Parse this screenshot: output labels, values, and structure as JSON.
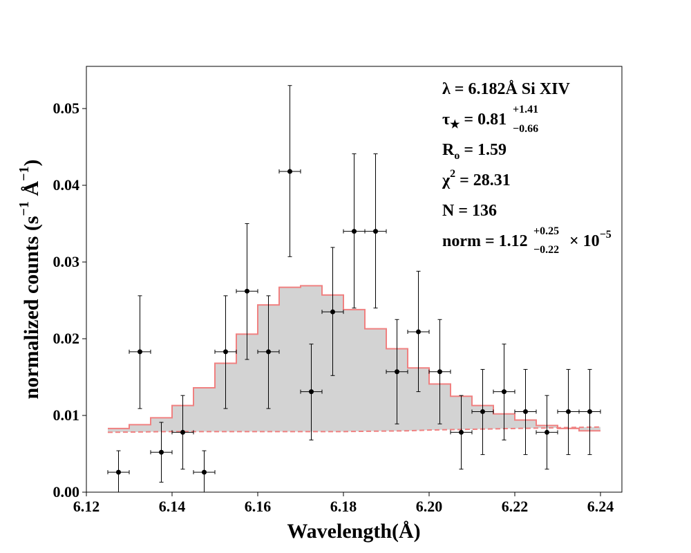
{
  "chart_data": {
    "type": "line",
    "xlabel_base": "Wavelength",
    "xlabel_unit": "(Å)",
    "ylabel_base": "normalized counts (s",
    "ylabel_sup1": "−1",
    "ylabel_mid": " Å",
    "ylabel_sup2": "−1",
    "ylabel_end": ")",
    "xlim": [
      6.12,
      6.245
    ],
    "ylim": [
      0.0,
      0.0555
    ],
    "xticks": [
      "6.12",
      "6.14",
      "6.16",
      "6.18",
      "6.20",
      "6.22",
      "6.24"
    ],
    "yticks": [
      "0.00",
      "0.01",
      "0.02",
      "0.03",
      "0.04",
      "0.05"
    ],
    "model_fill_color": "#d3d3d3",
    "model_line_color": "#f08080",
    "bin_edges": [
      6.125,
      6.13,
      6.135,
      6.14,
      6.145,
      6.15,
      6.155,
      6.16,
      6.165,
      6.17,
      6.175,
      6.18,
      6.185,
      6.19,
      6.195,
      6.2,
      6.205,
      6.21,
      6.215,
      6.22,
      6.225,
      6.23,
      6.235,
      6.24
    ],
    "model_values": [
      0.0083,
      0.0088,
      0.0097,
      0.0113,
      0.0136,
      0.0168,
      0.0206,
      0.0244,
      0.0267,
      0.0269,
      0.0257,
      0.0238,
      0.0213,
      0.0187,
      0.0162,
      0.0141,
      0.0125,
      0.0113,
      0.0102,
      0.0094,
      0.0087,
      0.0083,
      0.008
    ],
    "continuum_x": [
      6.125,
      6.14,
      6.16,
      6.18,
      6.195,
      6.2,
      6.21,
      6.22,
      6.23,
      6.24
    ],
    "continuum_y": [
      0.0078,
      0.0079,
      0.0079,
      0.0079,
      0.008,
      0.0081,
      0.0082,
      0.0083,
      0.0084,
      0.0085
    ],
    "points": [
      {
        "x": 6.1275,
        "y": 0.0026,
        "ylo": 0.0,
        "yhi": 0.0054
      },
      {
        "x": 6.1325,
        "y": 0.0183,
        "ylo": 0.0109,
        "yhi": 0.0256
      },
      {
        "x": 6.1375,
        "y": 0.0052,
        "ylo": 0.0013,
        "yhi": 0.0091
      },
      {
        "x": 6.1425,
        "y": 0.0078,
        "ylo": 0.003,
        "yhi": 0.0126
      },
      {
        "x": 6.1475,
        "y": 0.0026,
        "ylo": 0.0,
        "yhi": 0.0054
      },
      {
        "x": 6.1525,
        "y": 0.0183,
        "ylo": 0.0109,
        "yhi": 0.0256
      },
      {
        "x": 6.1575,
        "y": 0.0262,
        "ylo": 0.0173,
        "yhi": 0.035
      },
      {
        "x": 6.1625,
        "y": 0.0183,
        "ylo": 0.0109,
        "yhi": 0.0256
      },
      {
        "x": 6.1675,
        "y": 0.0418,
        "ylo": 0.0307,
        "yhi": 0.053
      },
      {
        "x": 6.1725,
        "y": 0.0131,
        "ylo": 0.0068,
        "yhi": 0.0193
      },
      {
        "x": 6.1775,
        "y": 0.0235,
        "ylo": 0.0152,
        "yhi": 0.0319
      },
      {
        "x": 6.1825,
        "y": 0.034,
        "ylo": 0.024,
        "yhi": 0.0441
      },
      {
        "x": 6.1875,
        "y": 0.034,
        "ylo": 0.024,
        "yhi": 0.0441
      },
      {
        "x": 6.1925,
        "y": 0.0157,
        "ylo": 0.0089,
        "yhi": 0.0225
      },
      {
        "x": 6.1975,
        "y": 0.0209,
        "ylo": 0.0131,
        "yhi": 0.0288
      },
      {
        "x": 6.2025,
        "y": 0.0157,
        "ylo": 0.0089,
        "yhi": 0.0225
      },
      {
        "x": 6.2075,
        "y": 0.0078,
        "ylo": 0.003,
        "yhi": 0.0126
      },
      {
        "x": 6.2125,
        "y": 0.0105,
        "ylo": 0.0049,
        "yhi": 0.016
      },
      {
        "x": 6.2175,
        "y": 0.0131,
        "ylo": 0.0068,
        "yhi": 0.0193
      },
      {
        "x": 6.2225,
        "y": 0.0105,
        "ylo": 0.0049,
        "yhi": 0.016
      },
      {
        "x": 6.2275,
        "y": 0.0078,
        "ylo": 0.003,
        "yhi": 0.0126
      },
      {
        "x": 6.2325,
        "y": 0.0105,
        "ylo": 0.0049,
        "yhi": 0.016
      },
      {
        "x": 6.2375,
        "y": 0.0105,
        "ylo": 0.0049,
        "yhi": 0.016
      }
    ],
    "x_error_half": 0.0025,
    "annotations": {
      "line1": "λ = 6.182Å Si XIV",
      "tau_lhs": "τ",
      "tau_sub": "★",
      "tau_eq": " = 0.81",
      "tau_plus": "+1.41",
      "tau_minus": "−0.66",
      "r_lhs": "R",
      "r_sub": "o",
      "r_eq": " = 1.59",
      "chi_lhs": "χ",
      "chi_sup": "2",
      "chi_eq": " = 28.31",
      "n_line": "N = 136",
      "norm_lhs": "norm = 1.12",
      "norm_plus": "+0.25",
      "norm_minus": "−0.22",
      "norm_times": "× 10",
      "norm_exp": "−5"
    }
  }
}
